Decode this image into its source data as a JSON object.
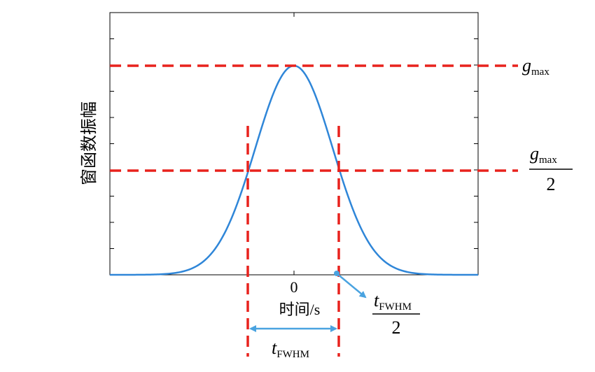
{
  "y_axis_label": "窗函数振幅",
  "x_tick": "0",
  "x_axis_label": "时间/s",
  "labels": {
    "g_max": {
      "symbol": "g",
      "subscript": "max"
    },
    "g_max_half": {
      "symbol": "g",
      "subscript": "max",
      "denominator": "2"
    },
    "t_fwhm_half": {
      "symbol": "t",
      "subscript": "FWHM",
      "denominator": "2"
    },
    "t_fwhm": {
      "symbol": "t",
      "subscript": "FWHM"
    }
  }
}
